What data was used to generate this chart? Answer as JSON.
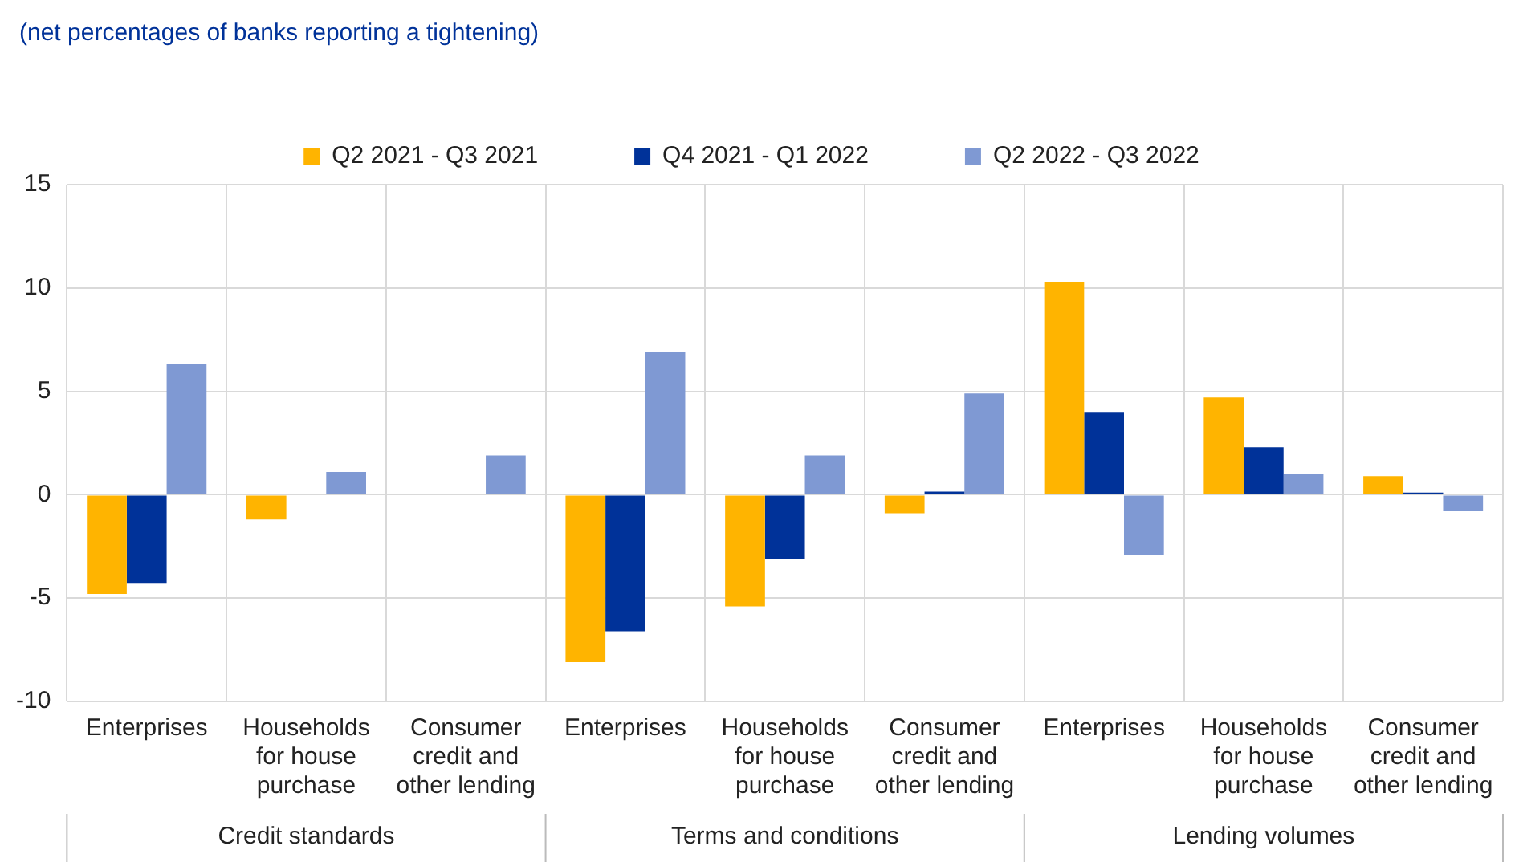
{
  "chart_data": {
    "type": "bar",
    "subtitle": "(net percentages of banks reporting a tightening)",
    "categories": [
      "Enterprises",
      "Households for house purchase",
      "Consumer credit and other lending",
      "Enterprises",
      "Households for house purchase",
      "Consumer credit and other lending",
      "Enterprises",
      "Households for house purchase",
      "Consumer credit and other lending"
    ],
    "series": [
      {
        "name": "Q2 2021 - Q3 2021",
        "color": "#ffb400",
        "values": [
          -4.8,
          -1.2,
          0,
          -8.1,
          -5.4,
          -0.9,
          10.3,
          4.7,
          0.9
        ]
      },
      {
        "name": "Q4 2021 - Q1 2022",
        "color": "#003299",
        "values": [
          -4.3,
          0,
          0,
          -6.6,
          -3.1,
          0.15,
          4.0,
          2.3,
          0.1
        ]
      },
      {
        "name": "Q2 2022 - Q3 2022",
        "color": "#7f99d3",
        "values": [
          6.3,
          1.1,
          1.9,
          6.9,
          1.9,
          4.9,
          -2.9,
          1.0,
          -0.8
        ]
      }
    ],
    "annotations": [
      "Credit standards",
      "Terms and conditions",
      "Lending volumes"
    ],
    "ylim": [
      -10,
      15
    ],
    "yticks": [
      -10,
      -5,
      0,
      5,
      10,
      15
    ],
    "grid": true,
    "legend": "top"
  }
}
